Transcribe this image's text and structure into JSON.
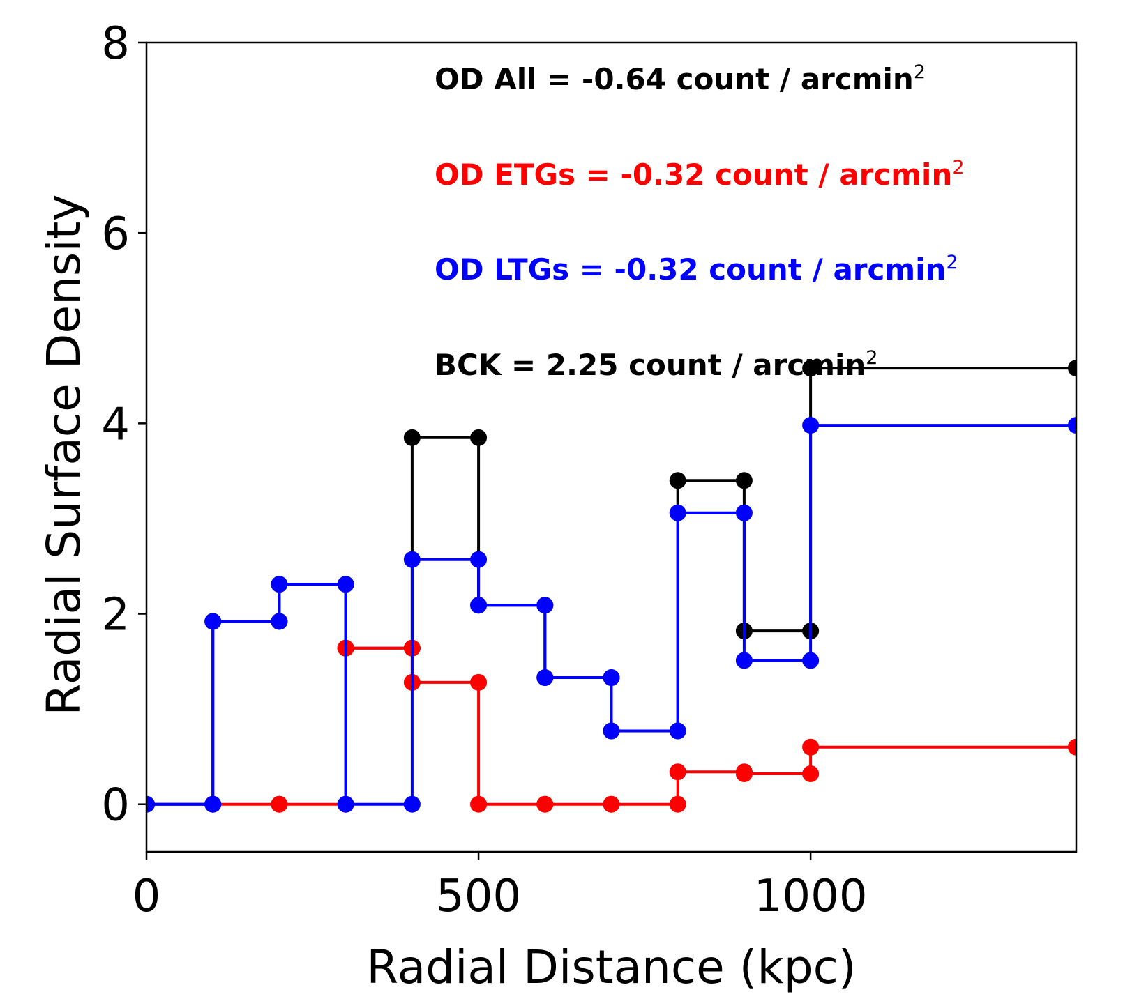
{
  "chart_data": {
    "type": "line",
    "step": true,
    "xlabel": "Radial Distance (kpc)",
    "ylabel": "Radial Surface Density",
    "xlim": [
      0,
      1400
    ],
    "ylim": [
      -0.5,
      8
    ],
    "xticks": [
      0,
      500,
      1000
    ],
    "xtick_labels": [
      "0",
      "500",
      "1000"
    ],
    "yticks": [
      0,
      2,
      4,
      6,
      8
    ],
    "ytick_labels": [
      "0",
      "2",
      "4",
      "6",
      "8"
    ],
    "grid": false,
    "series": [
      {
        "name": "All",
        "color": "#000000",
        "x": [
          0,
          100,
          100,
          200,
          200,
          300,
          300,
          400,
          400,
          500,
          500,
          600,
          600,
          700,
          700,
          800,
          800,
          900,
          900,
          1000,
          1000,
          1400
        ],
        "y": [
          0,
          0,
          1.92,
          1.92,
          2.31,
          2.31,
          1.64,
          1.64,
          3.85,
          3.85,
          2.09,
          2.09,
          1.33,
          1.33,
          0.77,
          0.77,
          3.4,
          3.4,
          1.82,
          1.82,
          4.58,
          4.58
        ]
      },
      {
        "name": "ETGs",
        "color": "#ff0000",
        "x": [
          100,
          200,
          200,
          300,
          300,
          400,
          400,
          500,
          500,
          600,
          600,
          700,
          700,
          800,
          800,
          900,
          900,
          1000,
          1000,
          1400
        ],
        "y": [
          0,
          0,
          0,
          0,
          1.64,
          1.64,
          1.28,
          1.28,
          0,
          0,
          0,
          0,
          0,
          0,
          0.34,
          0.34,
          0.32,
          0.32,
          0.6,
          0.6
        ]
      },
      {
        "name": "LTGs",
        "color": "#0000ff",
        "x": [
          0,
          100,
          100,
          200,
          200,
          300,
          300,
          400,
          400,
          500,
          500,
          600,
          600,
          700,
          700,
          800,
          800,
          900,
          900,
          1000,
          1000,
          1400
        ],
        "y": [
          0,
          0,
          1.92,
          1.92,
          2.31,
          2.31,
          0,
          0,
          2.57,
          2.57,
          2.09,
          2.09,
          1.33,
          1.33,
          0.77,
          0.77,
          3.06,
          3.06,
          1.51,
          1.51,
          3.98,
          3.98
        ]
      }
    ],
    "annotations": [
      {
        "text": "OD All = -0.64 count / arcmin",
        "sup": "2",
        "color": "#000000"
      },
      {
        "text": "OD ETGs = -0.32 count / arcmin",
        "sup": "2",
        "color": "#ff0000"
      },
      {
        "text": "OD LTGs = -0.32 count / arcmin",
        "sup": "2",
        "color": "#0000ff"
      },
      {
        "text": "BCK = 2.25 count / arcmin",
        "sup": "2",
        "color": "#000000"
      }
    ]
  }
}
